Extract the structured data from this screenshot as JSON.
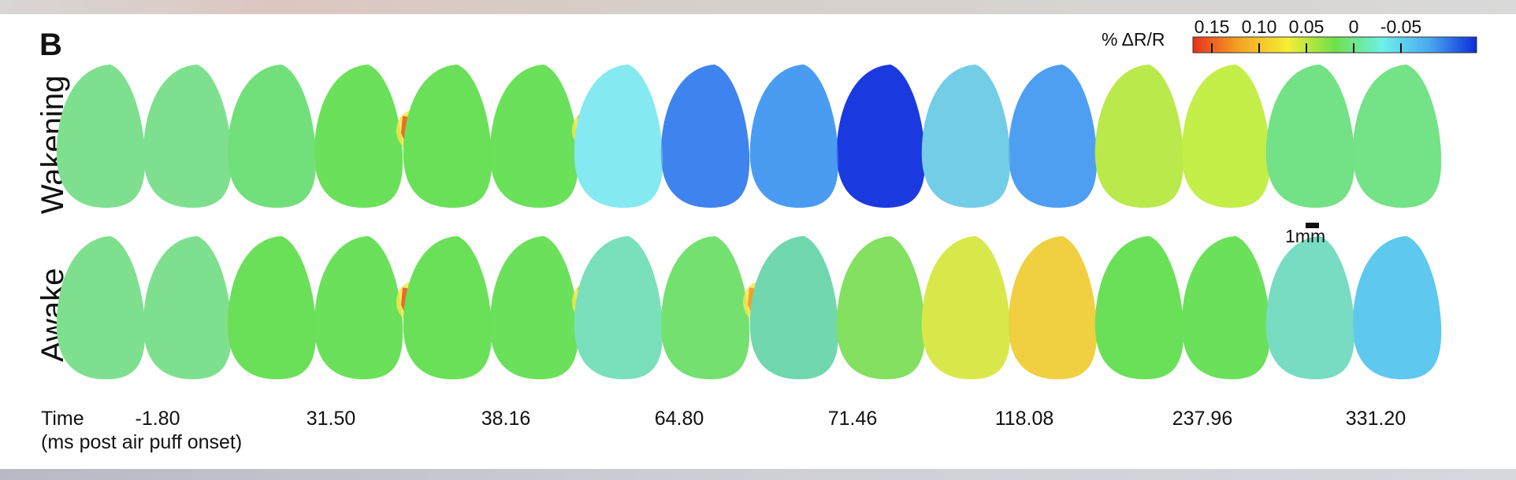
{
  "panel_label": "B",
  "rows": [
    {
      "label": "Wakening"
    },
    {
      "label": "Awake"
    }
  ],
  "time_axis": {
    "label_line1": "Time",
    "label_line2": "(ms post air puff onset)",
    "timepoints": [
      "-1.80",
      "31.50",
      "38.16",
      "64.80",
      "71.46",
      "118.08",
      "237.96",
      "331.20"
    ]
  },
  "colorbar": {
    "label": "% ΔR/R",
    "ticks": [
      "0.15",
      "0.10",
      "0.05",
      "0",
      "-0.05"
    ],
    "colors": [
      "#e8311c",
      "#f5a623",
      "#f5ee34",
      "#6fe04a",
      "#6ff0e8",
      "#4aa8f0",
      "#0a2cd9"
    ]
  },
  "scale_bar": {
    "label": "1mm"
  },
  "maps": {
    "Wakening": [
      {
        "base": "#7ee08f",
        "left_fill": "#7ee08f",
        "right_fill": "#7ee08f",
        "hotspot": null
      },
      {
        "base": "#72e07a",
        "left_fill": "#72e07a",
        "right_fill": "#6be05a",
        "hotspot": "#ec6a2a"
      },
      {
        "base": "#6be05a",
        "left_fill": "#6be05a",
        "right_fill": "#6be05a",
        "hotspot": "#ec6a2a"
      },
      {
        "base": "#8ef0ec",
        "left_fill": "#7fe5f4",
        "right_fill": "#3f83ee",
        "hotspot": null
      },
      {
        "base": "#5fc6f7",
        "left_fill": "#3e86ee",
        "right_fill": "#1a3ae0",
        "hotspot": null
      },
      {
        "base": "#86e0d8",
        "left_fill": "#6ac3f0",
        "right_fill": "#4e9ef2",
        "hotspot": null
      },
      {
        "base": "#b3ea4e",
        "left_fill": "#bfe84a",
        "right_fill": "#c4ee48",
        "hotspot": null
      },
      {
        "base": "#74e286",
        "left_fill": "#74e286",
        "right_fill": "#74e286",
        "hotspot": null
      }
    ],
    "Awake": [
      {
        "base": "#7ee08f",
        "left_fill": "#7ee08f",
        "right_fill": "#7ee08f",
        "hotspot": null
      },
      {
        "base": "#6be05a",
        "left_fill": "#6be05a",
        "right_fill": "#6be05a",
        "hotspot": "#ec6a2a"
      },
      {
        "base": "#6be05a",
        "left_fill": "#6be05a",
        "right_fill": "#6be05a",
        "hotspot": "#e95a22"
      },
      {
        "base": "#72dfa4",
        "left_fill": "#7fe0c8",
        "right_fill": "#74e070",
        "hotspot": "#f0a030"
      },
      {
        "base": "#74e070",
        "left_fill": "#6fd3cf",
        "right_fill": "#84e060",
        "hotspot": null
      },
      {
        "base": "#b9e84c",
        "left_fill": "#e9e84a",
        "right_fill": "#f0d040",
        "hotspot": null
      },
      {
        "base": "#6be05a",
        "left_fill": "#6be05a",
        "right_fill": "#6be05a",
        "hotspot": null
      },
      {
        "base": "#78dcc4",
        "left_fill": "#78dcc4",
        "right_fill": "#5ec8ee",
        "hotspot": null
      }
    ]
  }
}
